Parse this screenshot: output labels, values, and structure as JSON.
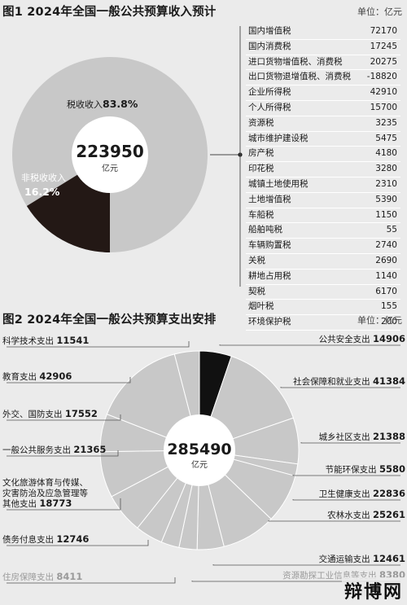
{
  "fig1": {
    "title": "图1 2024年全国一般公共预算收入预计",
    "unit": "单位：亿元",
    "center_value": "223950",
    "center_unit": "亿元",
    "segments": [
      {
        "name": "税收收入",
        "percent": "83.8%",
        "value": 83.8,
        "color": "#c8c8c8"
      },
      {
        "name": "非税收收入",
        "percent": "16.2%",
        "value": 16.2,
        "color": "#231815"
      }
    ],
    "table": [
      {
        "name": "国内增值税",
        "value": "72170"
      },
      {
        "name": "国内消费税",
        "value": "17245"
      },
      {
        "name": "进口货物增值税、消费税",
        "value": "20275"
      },
      {
        "name": "出口货物退增值税、消费税",
        "value": "-18820"
      },
      {
        "name": "企业所得税",
        "value": "42910"
      },
      {
        "name": "个人所得税",
        "value": "15700"
      },
      {
        "name": "资源税",
        "value": "3235"
      },
      {
        "name": "城市维护建设税",
        "value": "5475"
      },
      {
        "name": "房产税",
        "value": "4180"
      },
      {
        "name": "印花税",
        "value": "3280"
      },
      {
        "name": "城镇土地使用税",
        "value": "2310"
      },
      {
        "name": "土地增值税",
        "value": "5390"
      },
      {
        "name": "车船税",
        "value": "1150"
      },
      {
        "name": "船舶吨税",
        "value": "55"
      },
      {
        "name": "车辆购置税",
        "value": "2740"
      },
      {
        "name": "关税",
        "value": "2690"
      },
      {
        "name": "耕地占用税",
        "value": "1140"
      },
      {
        "name": "契税",
        "value": "6170"
      },
      {
        "name": "烟叶税",
        "value": "155"
      },
      {
        "name": "环境保护税",
        "value": "200"
      }
    ]
  },
  "fig2": {
    "title": "图2 2024年全国一般公共预算支出安排",
    "unit": "单位：亿元",
    "center_value": "285490",
    "center_unit": "亿元"
  },
  "chart_data": [
    {
      "type": "pie",
      "title": "图1 2024年全国一般公共预算收入预计",
      "total": 223950,
      "categories": [
        "税收收入",
        "非税收收入"
      ],
      "values": [
        83.8,
        16.2
      ]
    },
    {
      "type": "pie",
      "title": "图2 2024年全国一般公共预算支出安排",
      "total": 285490,
      "categories": [
        "公共安全支出",
        "社会保障和就业支出",
        "城乡社区支出",
        "节能环保支出",
        "卫生健康支出",
        "农林水支出",
        "交通运输支出",
        "资源勘探工业信息等支出",
        "住房保障支出",
        "债务付息支出",
        "文化旅游体育与传媒、灾害防治及应急管理等其他支出",
        "一般公共服务支出",
        "外交、国防支出",
        "教育支出",
        "科学技术支出"
      ],
      "values": [
        14906,
        41384,
        21388,
        5580,
        22836,
        25261,
        12461,
        8380,
        8411,
        12746,
        18773,
        21365,
        17552,
        42906,
        11541
      ],
      "labels": [
        {
          "name": "公共安全支出",
          "value": "14906",
          "side": "right"
        },
        {
          "name": "社会保障和就业支出",
          "value": "41384",
          "side": "right"
        },
        {
          "name": "城乡社区支出",
          "value": "21388",
          "side": "right"
        },
        {
          "name": "节能环保支出",
          "value": "5580",
          "side": "right"
        },
        {
          "name": "卫生健康支出",
          "value": "22836",
          "side": "right"
        },
        {
          "name": "农林水支出",
          "value": "25261",
          "side": "right"
        },
        {
          "name": "交通运输支出",
          "value": "12461",
          "side": "right"
        },
        {
          "name": "资源勘探工业信息等支出",
          "value": "8380",
          "side": "right"
        },
        {
          "name": "住房保障支出",
          "value": "8411",
          "side": "left"
        },
        {
          "name": "债务付息支出",
          "value": "12746",
          "side": "left"
        },
        {
          "name": "文化旅游体育与传媒、\n灾害防治及应急管理等\n其他支出",
          "value": "18773",
          "side": "left"
        },
        {
          "name": "一般公共服务支出",
          "value": "21365",
          "side": "left"
        },
        {
          "name": "外交、国防支出",
          "value": "17552",
          "side": "left"
        },
        {
          "name": "教育支出",
          "value": "42906",
          "side": "left"
        },
        {
          "name": "科学技术支出",
          "value": "11541",
          "side": "left"
        }
      ],
      "colors": {
        "highlight": "#111111",
        "default": "#c8c8c8"
      }
    }
  ]
}
